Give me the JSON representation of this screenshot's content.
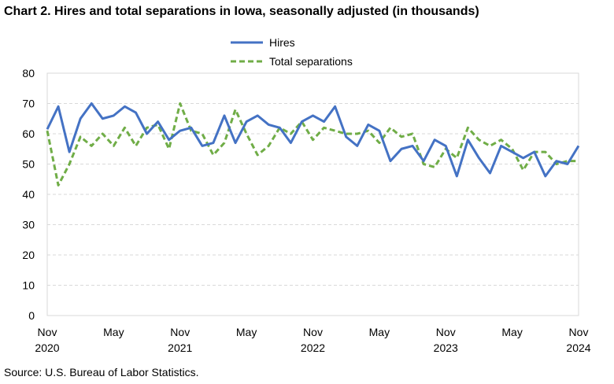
{
  "title": "Chart 2. Hires and total separations in Iowa, seasonally adjusted (in thousands)",
  "source": "Source: U.S. Bureau of Labor Statistics.",
  "chart_data": {
    "type": "line",
    "title": "Chart 2. Hires and total separations in Iowa, seasonally adjusted (in thousands)",
    "xlabel": "",
    "ylabel": "",
    "ylim": [
      0,
      80
    ],
    "yticks": [
      "0",
      "10",
      "20",
      "30",
      "40",
      "50",
      "60",
      "70",
      "80"
    ],
    "x_start": "2020-11",
    "x_end": "2024-11",
    "xticks": [
      {
        "month": "2020-11",
        "label": "Nov",
        "year": "2020"
      },
      {
        "month": "2021-05",
        "label": "May",
        "year": ""
      },
      {
        "month": "2021-11",
        "label": "Nov",
        "year": "2021"
      },
      {
        "month": "2022-05",
        "label": "May",
        "year": ""
      },
      {
        "month": "2022-11",
        "label": "Nov",
        "year": "2022"
      },
      {
        "month": "2023-05",
        "label": "May",
        "year": ""
      },
      {
        "month": "2023-11",
        "label": "Nov",
        "year": "2023"
      },
      {
        "month": "2024-05",
        "label": "May",
        "year": ""
      },
      {
        "month": "2024-11",
        "label": "Nov",
        "year": "2024"
      }
    ],
    "grid": true,
    "legend_position": "top-center",
    "series": [
      {
        "name": "Hires",
        "color": "#4472C4",
        "dash": "solid",
        "values": [
          61.5,
          69,
          54,
          65,
          70,
          65,
          66,
          69,
          67,
          60,
          64,
          58,
          61,
          62,
          56,
          57,
          66,
          57,
          64,
          66,
          63,
          62,
          57,
          64,
          66,
          64,
          69,
          59,
          56,
          63,
          61,
          51,
          55,
          56,
          51,
          58,
          56,
          46,
          58,
          52,
          47,
          56,
          54,
          52,
          54,
          46,
          51,
          50,
          56
        ]
      },
      {
        "name": "Total separations",
        "color": "#70AD47",
        "dash": "dashed",
        "values": [
          61,
          43,
          50,
          59,
          56,
          60,
          56,
          62,
          56,
          62,
          63,
          55,
          70,
          61,
          60,
          53,
          57,
          68,
          60,
          53,
          56,
          62,
          60,
          64,
          58,
          62,
          61,
          60,
          60,
          61,
          57,
          62,
          59,
          60,
          50,
          49,
          55,
          52,
          62,
          58,
          56,
          58,
          55,
          48,
          54,
          54,
          50,
          51,
          51
        ]
      }
    ]
  }
}
